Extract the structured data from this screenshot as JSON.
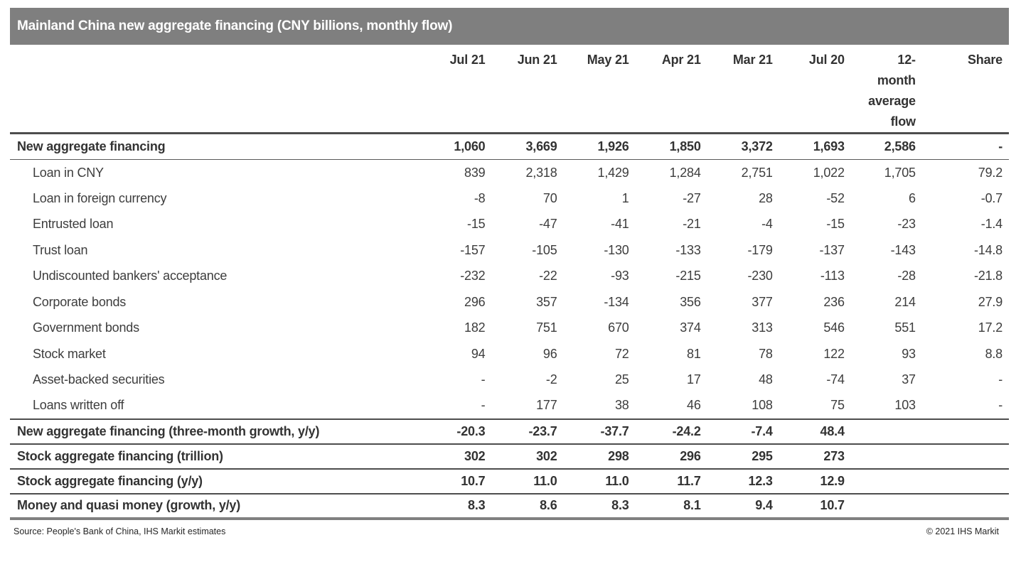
{
  "title_bar": {
    "title": "Mainland China new aggregate financing (CNY billions, monthly flow)"
  },
  "chart_data": {
    "type": "table",
    "title": "Mainland China new aggregate financing (CNY billions, monthly flow)",
    "columns": [
      "",
      "Jul 21",
      "Jun 21",
      "May 21",
      "Apr 21",
      "Mar 21",
      "Jul 20",
      "12-month average flow",
      "Share"
    ],
    "rows": [
      {
        "label": "New aggregate financing",
        "style": "total",
        "values": [
          "1,060",
          "3,669",
          "1,926",
          "1,850",
          "3,372",
          "1,693",
          "2,586",
          "-"
        ]
      },
      {
        "label": "Loan in CNY",
        "style": "sub",
        "values": [
          "839",
          "2,318",
          "1,429",
          "1,284",
          "2,751",
          "1,022",
          "1,705",
          "79.2"
        ]
      },
      {
        "label": "Loan in foreign currency",
        "style": "sub",
        "values": [
          "-8",
          "70",
          "1",
          "-27",
          "28",
          "-52",
          "6",
          "-0.7"
        ]
      },
      {
        "label": "Entrusted loan",
        "style": "sub",
        "values": [
          "-15",
          "-47",
          "-41",
          "-21",
          "-4",
          "-15",
          "-23",
          "-1.4"
        ]
      },
      {
        "label": "Trust loan",
        "style": "sub",
        "values": [
          "-157",
          "-105",
          "-130",
          "-133",
          "-179",
          "-137",
          "-143",
          "-14.8"
        ]
      },
      {
        "label": "Undiscounted bankers' acceptance",
        "style": "sub",
        "values": [
          "-232",
          "-22",
          "-93",
          "-215",
          "-230",
          "-113",
          "-28",
          "-21.8"
        ]
      },
      {
        "label": "Corporate bonds",
        "style": "sub",
        "values": [
          "296",
          "357",
          "-134",
          "356",
          "377",
          "236",
          "214",
          "27.9"
        ]
      },
      {
        "label": "Government bonds",
        "style": "sub",
        "values": [
          "182",
          "751",
          "670",
          "374",
          "313",
          "546",
          "551",
          "17.2"
        ]
      },
      {
        "label": "Stock market",
        "style": "sub",
        "values": [
          "94",
          "96",
          "72",
          "81",
          "78",
          "122",
          "93",
          "8.8"
        ]
      },
      {
        "label": "Asset-backed securities",
        "style": "sub",
        "values": [
          "-",
          "-2",
          "25",
          "17",
          "48",
          "-74",
          "37",
          "-"
        ]
      },
      {
        "label": "Loans written off",
        "style": "sub",
        "values": [
          "-",
          "177",
          "38",
          "46",
          "108",
          "75",
          "103",
          "-"
        ]
      },
      {
        "label": "New aggregate financing (three-month growth, y/y)",
        "style": "summary",
        "values": [
          "-20.3",
          "-23.7",
          "-37.7",
          "-24.2",
          "-7.4",
          "48.4",
          "",
          ""
        ]
      },
      {
        "label": "Stock aggregate financing (trillion)",
        "style": "summary",
        "values": [
          "302",
          "302",
          "298",
          "296",
          "295",
          "273",
          "",
          ""
        ]
      },
      {
        "label": "Stock aggregate financing (y/y)",
        "style": "summary",
        "values": [
          "10.7",
          "11.0",
          "11.0",
          "11.7",
          "12.3",
          "12.9",
          "",
          ""
        ]
      },
      {
        "label": "Money and quasi money (growth, y/y)",
        "style": "summary-last",
        "values": [
          "8.3",
          "8.6",
          "8.3",
          "8.1",
          "9.4",
          "10.7",
          "",
          ""
        ]
      }
    ],
    "layout_hints": {
      "numeric_alignment": "right",
      "grid": "horizontal rules on header, total row and summary rows only"
    }
  },
  "footer": {
    "source": "Source: People's Bank of China, IHS Markit estimates",
    "copyright": "© 2021 IHS Markit"
  },
  "colors": {
    "title_bar_bg": "#7f7f7f",
    "title_text": "#ffffff",
    "body_text": "#3d3d3d",
    "bold_text": "#333333",
    "rule_dark": "#4d4d4d",
    "rule_thin": "#595959",
    "rule_bottom": "#808080"
  }
}
